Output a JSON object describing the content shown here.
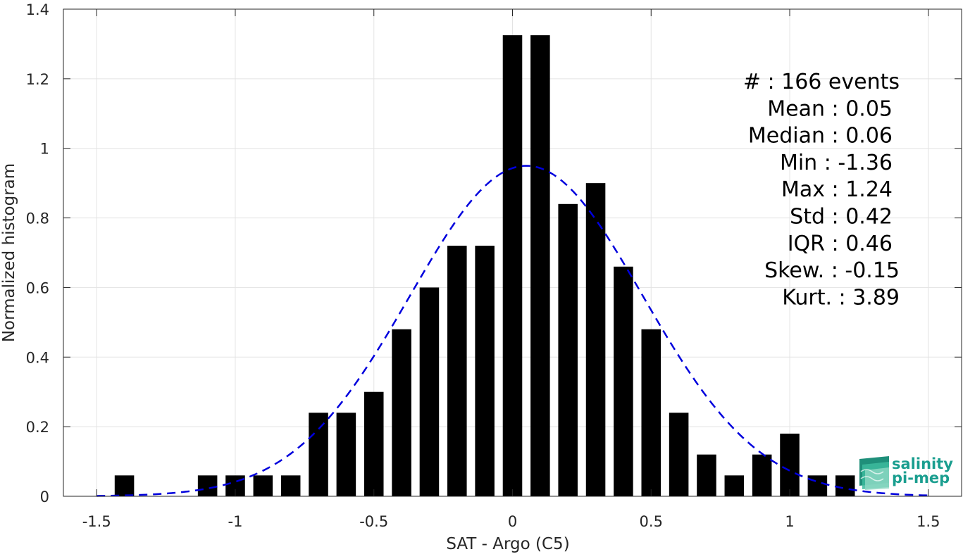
{
  "chart_data": {
    "type": "bar",
    "title": "",
    "xlabel": "SAT - Argo (C5)",
    "ylabel": "Normalized histogram",
    "xlim": [
      -1.62,
      1.62
    ],
    "ylim": [
      0,
      1.4
    ],
    "xticks": [
      -1.5,
      -1,
      -0.5,
      0,
      0.5,
      1,
      1.5
    ],
    "xtick_labels": [
      "-1.5",
      "-1",
      "-0.5",
      "0",
      "0.5",
      "1",
      "1.5"
    ],
    "yticks": [
      0,
      0.2,
      0.4,
      0.6,
      0.8,
      1,
      1.2,
      1.4
    ],
    "ytick_labels": [
      "0",
      "0.2",
      "0.4",
      "0.6",
      "0.8",
      "1",
      "1.2",
      "1.4"
    ],
    "grid": true,
    "bar_width": 0.07,
    "bars": [
      {
        "x": -1.4,
        "value": 0.06
      },
      {
        "x": -1.1,
        "value": 0.06
      },
      {
        "x": -1.0,
        "value": 0.06
      },
      {
        "x": -0.9,
        "value": 0.06
      },
      {
        "x": -0.8,
        "value": 0.06
      },
      {
        "x": -0.7,
        "value": 0.24
      },
      {
        "x": -0.6,
        "value": 0.24
      },
      {
        "x": -0.5,
        "value": 0.3
      },
      {
        "x": -0.4,
        "value": 0.48
      },
      {
        "x": -0.3,
        "value": 0.6
      },
      {
        "x": -0.2,
        "value": 0.72
      },
      {
        "x": -0.1,
        "value": 0.72
      },
      {
        "x": 0.0,
        "value": 1.325
      },
      {
        "x": 0.1,
        "value": 1.325
      },
      {
        "x": 0.2,
        "value": 0.84
      },
      {
        "x": 0.3,
        "value": 0.9
      },
      {
        "x": 0.4,
        "value": 0.66
      },
      {
        "x": 0.5,
        "value": 0.48
      },
      {
        "x": 0.6,
        "value": 0.24
      },
      {
        "x": 0.7,
        "value": 0.12
      },
      {
        "x": 0.8,
        "value": 0.06
      },
      {
        "x": 0.9,
        "value": 0.12
      },
      {
        "x": 1.0,
        "value": 0.18
      },
      {
        "x": 1.1,
        "value": 0.06
      },
      {
        "x": 1.2,
        "value": 0.06
      }
    ],
    "fit": {
      "type": "gaussian",
      "mean": 0.05,
      "std": 0.42,
      "x_range": [
        -1.5,
        1.5
      ],
      "color": "#0000dd",
      "style": "dashed"
    },
    "bar_color": "#000000"
  },
  "stats": {
    "lines": [
      "#  : 166 events",
      "Mean : 0.05",
      "Median : 0.06",
      "Min : -1.36",
      "Max : 1.24",
      "Std : 0.42",
      "IQR : 0.46",
      "Skew. : -0.15",
      "Kurt. : 3.89"
    ]
  },
  "logo": {
    "line1": "salinity",
    "line2": "pi-mep",
    "icon": "salinity-waves-logo-icon"
  }
}
